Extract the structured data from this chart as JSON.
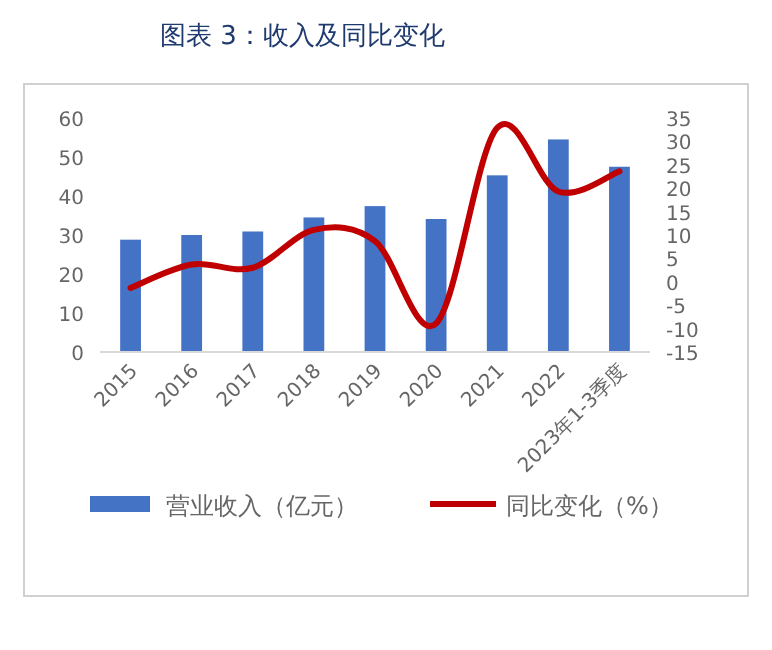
{
  "chart_data": {
    "type": "bar",
    "title": "图表 3：收入及同比变化",
    "categories": [
      "2015",
      "2016",
      "2017",
      "2018",
      "2019",
      "2020",
      "2021",
      "2022",
      "2023年1-3季度"
    ],
    "series": [
      {
        "name": "营业收入（亿元）",
        "color": "#4472c4",
        "values": [
          28.8,
          30,
          30.9,
          34.5,
          37.4,
          34.1,
          45.3,
          54.5,
          47.5
        ]
      },
      {
        "name": "同比变化（%）",
        "type": "line",
        "axis": "y2",
        "color": "#c00000",
        "values": [
          -1.3,
          3.7,
          3,
          11.1,
          8.7,
          -8.9,
          32.9,
          19.3,
          23.6
        ]
      }
    ],
    "ylim": [
      0,
      60
    ],
    "yticks": [
      0,
      10,
      20,
      30,
      40,
      50,
      60
    ],
    "y2lim": [
      -15,
      35
    ],
    "y2ticks": [
      -15,
      -10,
      -5,
      0,
      5,
      10,
      15,
      20,
      25,
      30,
      35
    ],
    "legend": "bottom",
    "grid": false
  }
}
